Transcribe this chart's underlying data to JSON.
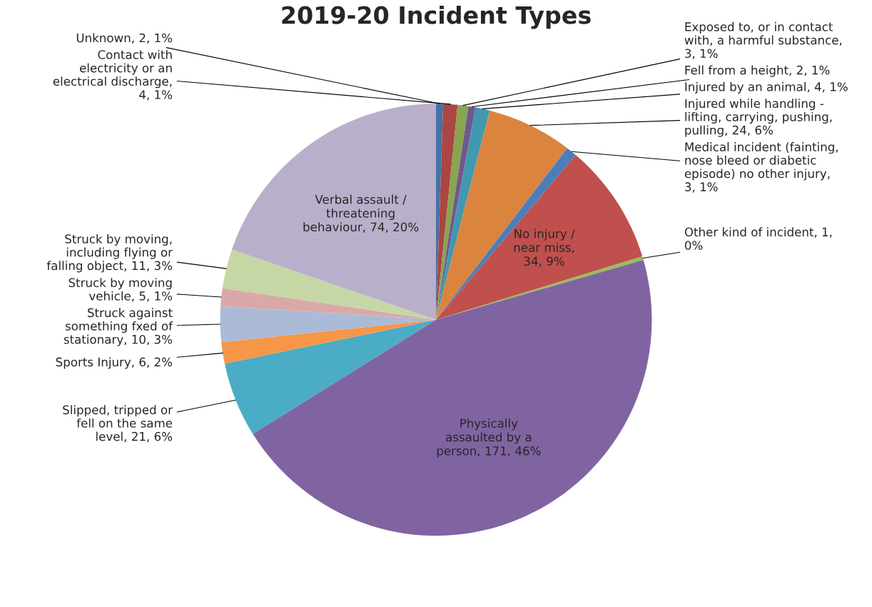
{
  "chart_data": {
    "type": "pie",
    "title": "2019-20 Incident Types",
    "categories": [
      "Unknown, 2, 1%",
      "Contact with electricity or an electrical discharge, 4, 1%",
      "Exposed to, or in contact with, a harmful substance, 3, 1%",
      "Fell from a height, 2, 1%",
      "Injured by an animal, 4, 1%",
      "Injured while handling - lifting, carrying, pushing, pulling, 24, 6%",
      "Medical incident (fainting, nose bleed or diabetic episode) no other injury, 3, 1%",
      "No injury / near miss, 34, 9%",
      "Other kind of incident, 1, 0%",
      "Physically assaulted by a person, 171, 46%",
      "Slipped, tripped or fell on the same level, 21, 6%",
      "Sports Injury, 6, 2%",
      "Struck against something fxed of stationary, 10, 3%",
      "Struck by moving vehicle, 5, 1%",
      "Struck by moving, including flying or falling object, 11, 3%",
      "Verbal assault / threatening behaviour, 74, 20%"
    ],
    "values": [
      2,
      4,
      3,
      2,
      4,
      24,
      3,
      34,
      1,
      171,
      21,
      6,
      10,
      5,
      11,
      74
    ],
    "colors": [
      "#4572a7",
      "#aa4643",
      "#89a54e",
      "#71588f",
      "#4198af",
      "#db843d",
      "#4a7ebb",
      "#c0504d",
      "#9bbb59",
      "#8064a2",
      "#4bacc6",
      "#f79646",
      "#aabad7",
      "#d9a9a8",
      "#c6d6a5",
      "#b9afcb"
    ]
  }
}
